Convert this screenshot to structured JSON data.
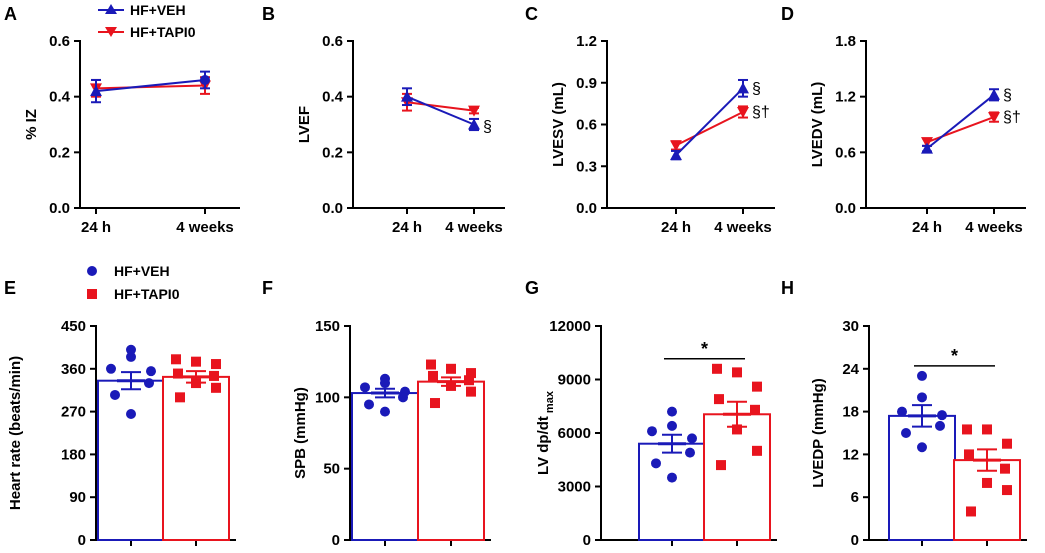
{
  "colors": {
    "veh": "#1a1ab8",
    "tapi": "#e8141e"
  },
  "legend": {
    "veh": "HF+VEH",
    "tapi": "HF+TAPI0"
  },
  "chart_data": [
    {
      "id": "A",
      "letter": "A",
      "type": "line",
      "ylabel": "% IZ",
      "categories": [
        "24 h",
        "4 weeks"
      ],
      "ylim": [
        0,
        0.6
      ],
      "yticks": [
        "0.0",
        "0.2",
        "0.4",
        "0.6"
      ],
      "series": [
        {
          "name": "HF+VEH",
          "values": [
            0.42,
            0.46
          ],
          "errors": [
            0.04,
            0.03
          ]
        },
        {
          "name": "HF+TAPI0",
          "values": [
            0.43,
            0.44
          ],
          "errors": [
            0.03,
            0.03
          ]
        }
      ],
      "annotations": []
    },
    {
      "id": "B",
      "letter": "B",
      "type": "line",
      "ylabel": "LVEF",
      "categories": [
        "24 h",
        "4 weeks"
      ],
      "ylim": [
        0,
        0.6
      ],
      "yticks": [
        "0.0",
        "0.2",
        "0.4",
        "0.6"
      ],
      "series": [
        {
          "name": "HF+VEH",
          "values": [
            0.4,
            0.3
          ],
          "errors": [
            0.03,
            0.02
          ]
        },
        {
          "name": "HF+TAPI0",
          "values": [
            0.38,
            0.35
          ],
          "errors": [
            0.03,
            0.01
          ]
        }
      ],
      "annotations": [
        {
          "series": 0,
          "index": 1,
          "text": "§"
        }
      ]
    },
    {
      "id": "C",
      "letter": "C",
      "type": "line",
      "ylabel": "LVESV (mL)",
      "categories": [
        "24 h",
        "4 weeks"
      ],
      "ylim": [
        0,
        1.2
      ],
      "yticks": [
        "0.0",
        "0.3",
        "0.6",
        "0.9",
        "1.2"
      ],
      "series": [
        {
          "name": "HF+VEH",
          "values": [
            0.38,
            0.86
          ],
          "errors": [
            0.03,
            0.06
          ]
        },
        {
          "name": "HF+TAPI0",
          "values": [
            0.45,
            0.69
          ],
          "errors": [
            0.03,
            0.04
          ]
        }
      ],
      "annotations": [
        {
          "series": 0,
          "index": 1,
          "text": "§"
        },
        {
          "series": 1,
          "index": 1,
          "text": "§†"
        }
      ]
    },
    {
      "id": "D",
      "letter": "D",
      "type": "line",
      "ylabel": "LVEDV (mL)",
      "categories": [
        "24 h",
        "4 weeks"
      ],
      "ylim": [
        0,
        1.8
      ],
      "yticks": [
        "0.0",
        "0.6",
        "1.2",
        "1.8"
      ],
      "series": [
        {
          "name": "HF+VEH",
          "values": [
            0.64,
            1.22
          ],
          "errors": [
            0.03,
            0.06
          ]
        },
        {
          "name": "HF+TAPI0",
          "values": [
            0.71,
            0.98
          ],
          "errors": [
            0.04,
            0.05
          ]
        }
      ],
      "annotations": [
        {
          "series": 0,
          "index": 1,
          "text": "§"
        },
        {
          "series": 1,
          "index": 1,
          "text": "§†"
        }
      ]
    },
    {
      "id": "E",
      "letter": "E",
      "type": "bar",
      "ylabel": "Heart rate (beats/min)",
      "ylim": [
        0,
        450
      ],
      "yticks": [
        "0",
        "90",
        "180",
        "270",
        "360",
        "450"
      ],
      "bars": [
        {
          "name": "HF+VEH",
          "mean": 335,
          "sem": 18,
          "points": [
            400,
            385,
            360,
            355,
            330,
            305,
            265
          ]
        },
        {
          "name": "HF+TAPI0",
          "mean": 343,
          "sem": 12,
          "points": [
            380,
            375,
            370,
            350,
            345,
            330,
            320,
            300
          ]
        }
      ],
      "significance": null
    },
    {
      "id": "F",
      "letter": "F",
      "type": "bar",
      "ylabel": "SPB (mmHg)",
      "ylim": [
        0,
        150
      ],
      "yticks": [
        "0",
        "50",
        "100",
        "150"
      ],
      "bars": [
        {
          "name": "HF+VEH",
          "mean": 103,
          "sem": 3,
          "points": [
            113,
            110,
            107,
            104,
            100,
            95,
            90
          ]
        },
        {
          "name": "HF+TAPI0",
          "mean": 111,
          "sem": 3,
          "points": [
            123,
            120,
            117,
            115,
            112,
            108,
            104,
            96
          ]
        }
      ],
      "significance": null
    },
    {
      "id": "G",
      "letter": "G",
      "type": "bar",
      "ylabel": "LV dp/dt",
      "ylabel_sub": "max",
      "ylim": [
        0,
        12000
      ],
      "yticks": [
        "0",
        "3000",
        "6000",
        "9000",
        "12000"
      ],
      "bars": [
        {
          "name": "HF+VEH",
          "mean": 5400,
          "sem": 500,
          "points": [
            7200,
            6400,
            6100,
            5700,
            4900,
            4300,
            3500
          ]
        },
        {
          "name": "HF+TAPI0",
          "mean": 7050,
          "sem": 700,
          "points": [
            9600,
            9400,
            8600,
            7900,
            7300,
            6200,
            5000,
            4200
          ]
        }
      ],
      "significance": "*"
    },
    {
      "id": "H",
      "letter": "H",
      "type": "bar",
      "ylabel": "LVEDP (mmHg)",
      "ylim": [
        0,
        30
      ],
      "yticks": [
        "0",
        "6",
        "12",
        "18",
        "24",
        "30"
      ],
      "bars": [
        {
          "name": "HF+VEH",
          "mean": 17.4,
          "sem": 1.5,
          "points": [
            23,
            20,
            18,
            17.5,
            16,
            15,
            13
          ]
        },
        {
          "name": "HF+TAPI0",
          "mean": 11.2,
          "sem": 1.5,
          "points": [
            15.5,
            15.5,
            13.5,
            12,
            10,
            8,
            7,
            4
          ]
        }
      ],
      "significance": "*"
    }
  ]
}
